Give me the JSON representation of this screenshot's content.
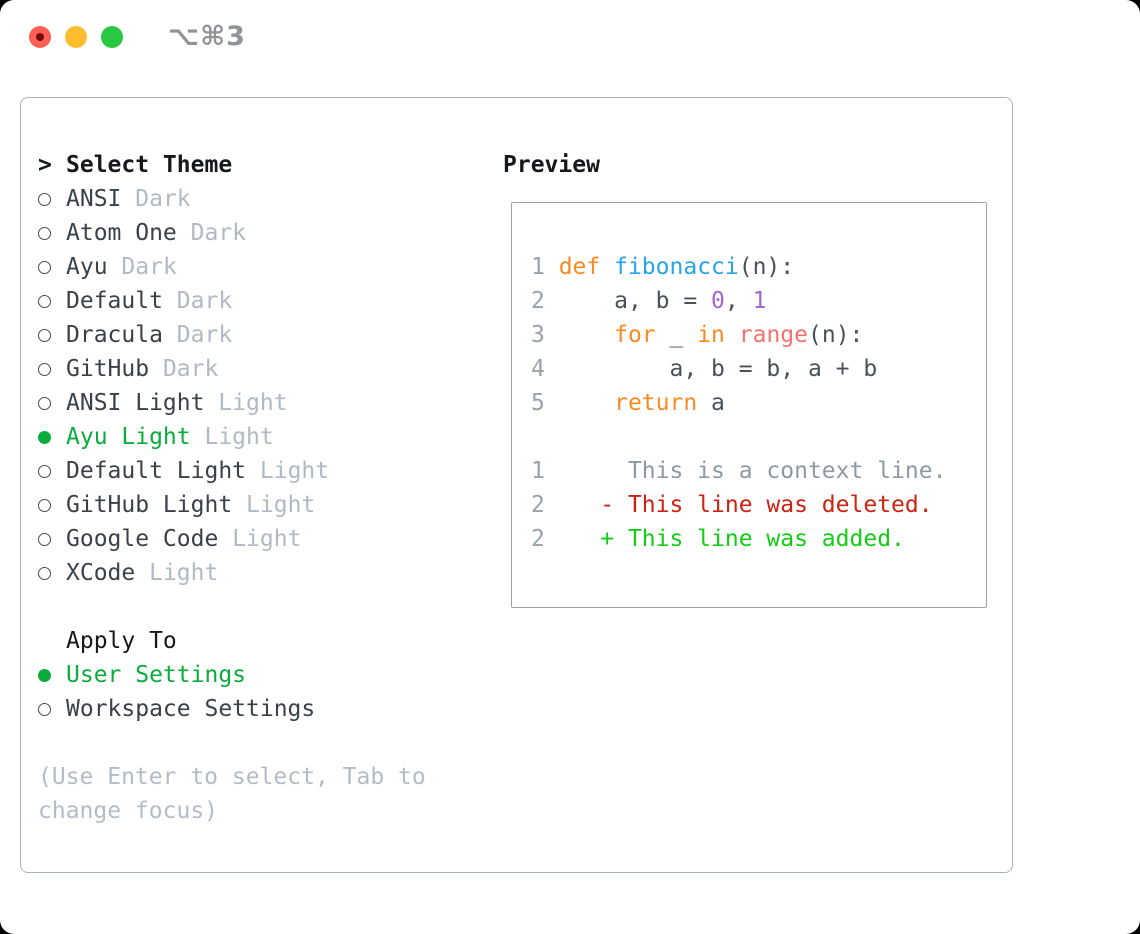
{
  "window": {
    "title": "⌥⌘3"
  },
  "traffic_lights": [
    {
      "name": "close",
      "color": "#ff5f57"
    },
    {
      "name": "minimize",
      "color": "#febc2e"
    },
    {
      "name": "zoom",
      "color": "#28c840"
    }
  ],
  "theme_selector": {
    "heading_marker": ">",
    "heading": "Select Theme",
    "items": [
      {
        "name": "ANSI",
        "variant": "Dark",
        "selected": false
      },
      {
        "name": "Atom One",
        "variant": "Dark",
        "selected": false
      },
      {
        "name": "Ayu",
        "variant": "Dark",
        "selected": false
      },
      {
        "name": "Default",
        "variant": "Dark",
        "selected": false
      },
      {
        "name": "Dracula",
        "variant": "Dark",
        "selected": false
      },
      {
        "name": "GitHub",
        "variant": "Dark",
        "selected": false
      },
      {
        "name": "ANSI Light",
        "variant": "Light",
        "selected": false
      },
      {
        "name": "Ayu Light",
        "variant": "Light",
        "selected": true
      },
      {
        "name": "Default Light",
        "variant": "Light",
        "selected": false
      },
      {
        "name": "GitHub Light",
        "variant": "Light",
        "selected": false
      },
      {
        "name": "Google Code",
        "variant": "Light",
        "selected": false
      },
      {
        "name": "XCode",
        "variant": "Light",
        "selected": false
      }
    ]
  },
  "apply_to": {
    "heading": "Apply To",
    "options": [
      {
        "name": "User Settings",
        "selected": true
      },
      {
        "name": "Workspace Settings",
        "selected": false
      }
    ]
  },
  "hint_lines": [
    "(Use Enter to select, Tab to",
    "change focus)"
  ],
  "preview": {
    "heading": "Preview",
    "code_lines": [
      {
        "num": "1",
        "tokens": [
          [
            "kw",
            "def"
          ],
          [
            "pl",
            " "
          ],
          [
            "fn",
            "fibonacci"
          ],
          [
            "pl",
            "(n):"
          ]
        ]
      },
      {
        "num": "2",
        "tokens": [
          [
            "pl",
            "    a, b = "
          ],
          [
            "num",
            "0"
          ],
          [
            "pl",
            ", "
          ],
          [
            "num",
            "1"
          ]
        ]
      },
      {
        "num": "3",
        "tokens": [
          [
            "pl",
            "    "
          ],
          [
            "kw",
            "for"
          ],
          [
            "pl",
            " _ "
          ],
          [
            "kw",
            "in"
          ],
          [
            "pl",
            " "
          ],
          [
            "bi",
            "range"
          ],
          [
            "pl",
            "(n):"
          ]
        ]
      },
      {
        "num": "4",
        "tokens": [
          [
            "pl",
            "        a, b = b, a + b"
          ]
        ]
      },
      {
        "num": "5",
        "tokens": [
          [
            "pl",
            "    "
          ],
          [
            "kw",
            "return"
          ],
          [
            "pl",
            " a"
          ]
        ]
      },
      {
        "num": "",
        "tokens": []
      },
      {
        "num": "1",
        "tokens": [
          [
            "ctx",
            "     This is a context line."
          ]
        ]
      },
      {
        "num": "2",
        "tokens": [
          [
            "del",
            "   - This line was deleted."
          ]
        ]
      },
      {
        "num": "2",
        "tokens": [
          [
            "add",
            "   + This line was added."
          ]
        ]
      }
    ]
  },
  "colors": {
    "accent_green": "#0aac3c",
    "variant_gray": "#b0b9c4",
    "hint_gray": "#b3bcc6",
    "panel_border": "#a9b2bc",
    "keyword_orange": "#f98b22",
    "function_blue": "#2aa4e8",
    "builtin_red": "#f5716f",
    "number_purple": "#a366d0",
    "diff_red": "#cc2211",
    "diff_green": "#12cd12",
    "context_gray": "#8f99a4"
  }
}
